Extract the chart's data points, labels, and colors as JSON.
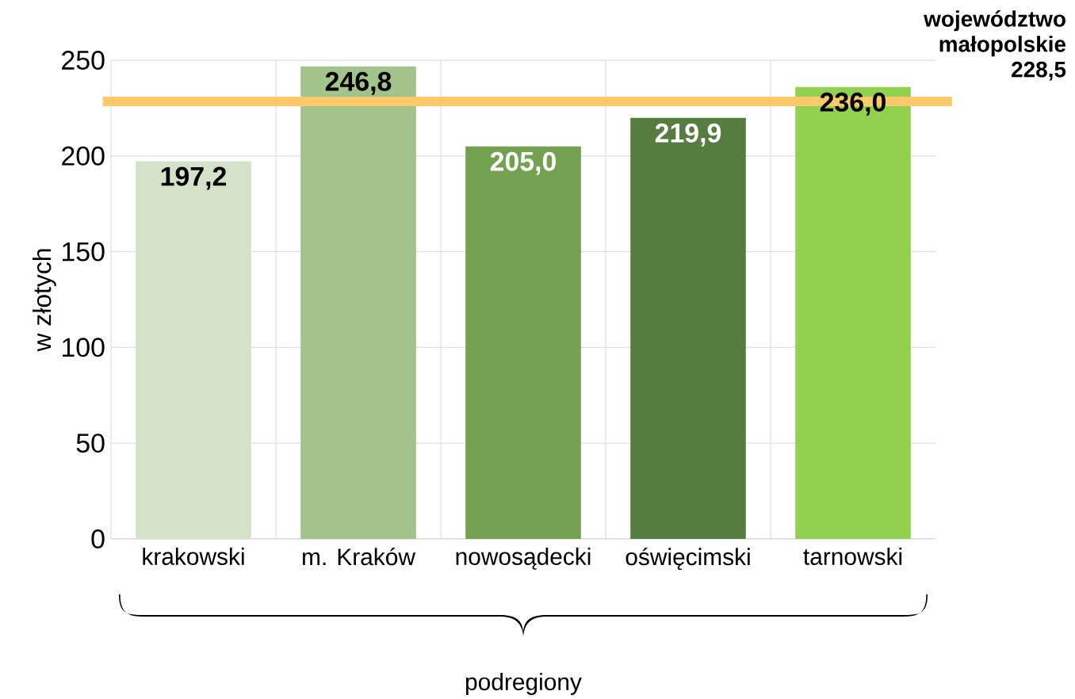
{
  "chart_data": {
    "type": "bar",
    "ylabel": "w złotych",
    "xlabel": "podregiony",
    "categories": [
      "krakowski",
      "m. Kraków",
      "nowosądecki",
      "oświęcimski",
      "tarnowski"
    ],
    "values": [
      197.2,
      246.8,
      205.0,
      219.9,
      236.0
    ],
    "colors": [
      "#d3e2c8",
      "#a3c38d",
      "#72a150",
      "#567d3f",
      "#92d050"
    ],
    "value_labels": [
      "197,2",
      "246,8",
      "205,0",
      "219,9",
      "236,0"
    ],
    "ylim": [
      0,
      250
    ],
    "yticks": [
      0,
      50,
      100,
      150,
      200,
      250
    ],
    "grid": true,
    "legend": false,
    "ref_lines": [
      {
        "axis": "y",
        "value": 228.5,
        "label": "województwo małopolskie 228,5",
        "color": "#fcc96b"
      }
    ]
  }
}
